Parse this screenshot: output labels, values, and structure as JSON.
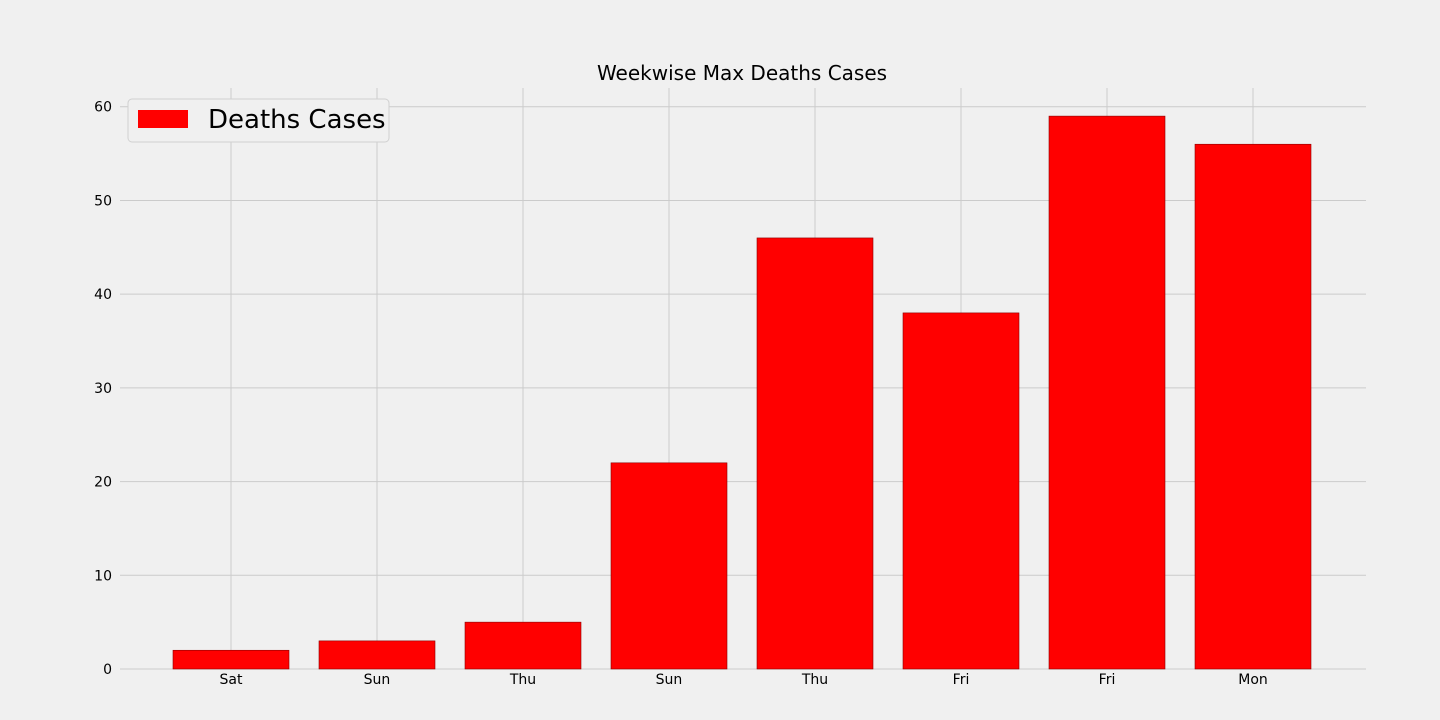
{
  "chart_data": {
    "type": "bar",
    "title": "Weekwise Max Deaths Cases",
    "xlabel": "",
    "ylabel": "",
    "categories": [
      "Sat",
      "Sun",
      "Thu",
      "Sun",
      "Thu",
      "Fri",
      "Fri",
      "Mon"
    ],
    "series": [
      {
        "name": "Deaths Cases",
        "values": [
          2,
          3,
          5,
          22,
          46,
          38,
          59,
          56
        ],
        "color": "#ff0000"
      }
    ],
    "ylim": [
      0,
      62
    ],
    "yticks": [
      0,
      10,
      20,
      30,
      40,
      50,
      60
    ],
    "grid": true,
    "legend_position": "top-left"
  },
  "colors": {
    "background": "#f0f0f0",
    "grid": "#cbcbcb",
    "bar": "#ff0000",
    "bar_edge": "#8b0000"
  }
}
